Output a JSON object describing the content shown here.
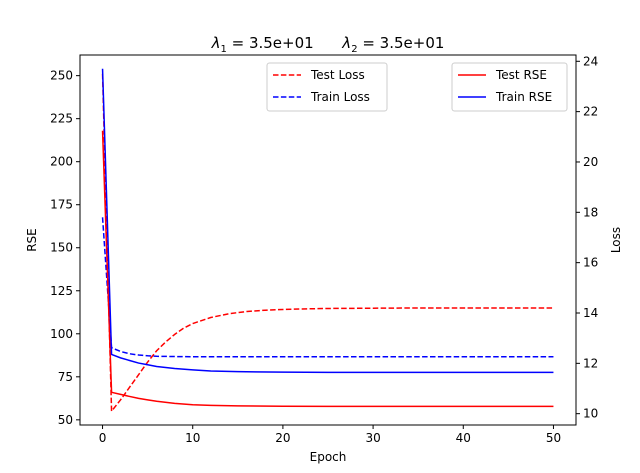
{
  "chart_data": {
    "type": "line",
    "title": "λ1 = 3.5e+01      λ2 = 3.5e+01",
    "title_parts": [
      {
        "sym": "λ",
        "sub": "1",
        "rest": " = 3.5e+01"
      },
      {
        "sym": "λ",
        "sub": "2",
        "rest": " = 3.5e+01"
      }
    ],
    "xlabel": "Epoch",
    "ylabel_left": "RSE",
    "ylabel_right": "Loss",
    "xlim": [
      -2.5,
      52.5
    ],
    "ylim_left": [
      47.0,
      262.0
    ],
    "ylim_right": [
      9.55,
      24.25
    ],
    "x_ticks": [
      0,
      10,
      20,
      30,
      40,
      50
    ],
    "y_ticks_left": [
      50,
      75,
      100,
      125,
      150,
      175,
      200,
      225,
      250
    ],
    "y_ticks_right": [
      10,
      12,
      14,
      16,
      18,
      20,
      22,
      24
    ],
    "grid": false,
    "legends": [
      {
        "placement": "upper-center",
        "entries": [
          "Test Loss",
          "Train Loss"
        ]
      },
      {
        "placement": "upper-right",
        "entries": [
          "Test RSE",
          "Train RSE"
        ]
      }
    ],
    "series": [
      {
        "name": "Test Loss",
        "axis": "right",
        "color": "#ff0000",
        "style": "dashed",
        "x": [
          0,
          1,
          2,
          3,
          4,
          5,
          6,
          7,
          8,
          9,
          10,
          12,
          14,
          16,
          18,
          20,
          22,
          25,
          30,
          35,
          40,
          45,
          50
        ],
        "y": [
          23.5,
          10.1,
          10.55,
          11.05,
          11.55,
          12.05,
          12.5,
          12.85,
          13.15,
          13.4,
          13.58,
          13.82,
          13.97,
          14.06,
          14.11,
          14.14,
          14.16,
          14.18,
          14.19,
          14.2,
          14.2,
          14.2,
          14.2
        ]
      },
      {
        "name": "Train Loss",
        "axis": "right",
        "color": "#0000ff",
        "style": "dashed",
        "x": [
          0,
          1,
          2,
          3,
          4,
          5,
          6,
          8,
          10,
          15,
          20,
          30,
          40,
          50
        ],
        "y": [
          17.8,
          12.62,
          12.47,
          12.38,
          12.33,
          12.3,
          12.28,
          12.27,
          12.26,
          12.26,
          12.26,
          12.26,
          12.26,
          12.26
        ]
      },
      {
        "name": "Test RSE",
        "axis": "left",
        "color": "#ff0000",
        "style": "solid",
        "x": [
          0,
          1,
          2,
          3,
          4,
          5,
          6,
          8,
          10,
          12,
          15,
          20,
          25,
          30,
          40,
          50
        ],
        "y": [
          218,
          66,
          64.8,
          63.6,
          62.5,
          61.6,
          60.8,
          59.6,
          58.8,
          58.4,
          58.1,
          57.9,
          57.8,
          57.8,
          57.8,
          57.8
        ]
      },
      {
        "name": "Train RSE",
        "axis": "left",
        "color": "#0000ff",
        "style": "solid",
        "x": [
          0,
          1,
          2,
          3,
          4,
          5,
          6,
          8,
          10,
          12,
          15,
          20,
          25,
          30,
          40,
          50
        ],
        "y": [
          254,
          88,
          86,
          84.5,
          83,
          82,
          81,
          79.8,
          79,
          78.4,
          78,
          77.7,
          77.6,
          77.6,
          77.6,
          77.6
        ]
      }
    ]
  }
}
